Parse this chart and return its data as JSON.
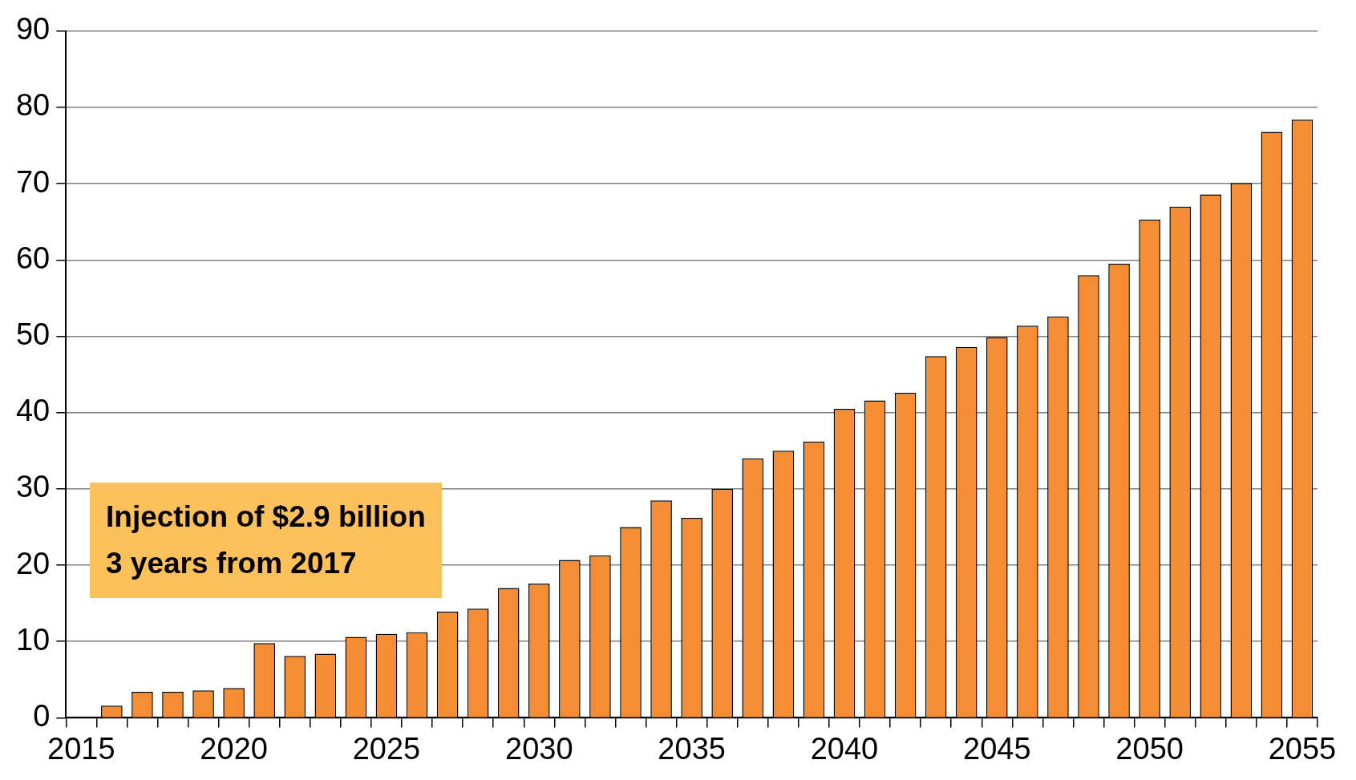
{
  "chart_data": {
    "type": "bar",
    "categories": [
      "2015",
      null,
      null,
      null,
      null,
      "2020",
      null,
      null,
      null,
      null,
      "2025",
      null,
      null,
      null,
      null,
      "2030",
      null,
      null,
      null,
      null,
      "2035",
      null,
      null,
      null,
      null,
      "2040",
      null,
      null,
      null,
      null,
      "2045",
      null,
      null,
      null,
      null,
      "2050",
      null,
      null,
      null,
      null,
      "2055"
    ],
    "values": [
      null,
      1.6,
      3.4,
      3.4,
      3.6,
      3.9,
      9.8,
      8.1,
      8.4,
      10.6,
      11.0,
      11.2,
      13.9,
      14.3,
      17.0,
      17.6,
      20.7,
      21.3,
      25.0,
      28.5,
      26.2,
      30.0,
      34.0,
      35.0,
      36.2,
      40.5,
      41.6,
      42.6,
      47.4,
      48.6,
      49.9,
      51.4,
      52.6,
      58.0,
      59.5,
      65.3,
      67.0,
      68.6,
      70.1,
      76.8,
      78.4
    ],
    "color": "#f58d35",
    "ylim": [
      0,
      90
    ],
    "yticks": [
      0,
      10,
      20,
      30,
      40,
      50,
      60,
      70,
      80,
      90
    ],
    "grid": "y",
    "annotations": [
      "Injection of $2.9 billion\n3 years from 2017"
    ]
  }
}
